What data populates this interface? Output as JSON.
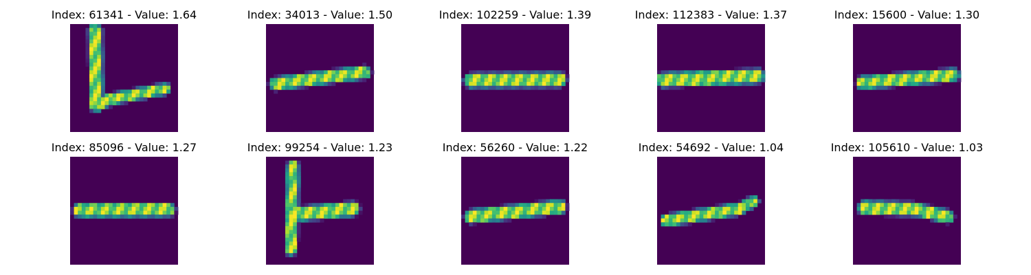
{
  "chart_data": {
    "type": "heatmap",
    "colormap": "viridis",
    "image_size": [
      28,
      28
    ],
    "grid": false,
    "rows": 2,
    "cols": 5,
    "panels": [
      {
        "title": "Index: 61341 - Value: 1.64",
        "strokes": [
          {
            "x1": 6.5,
            "y1": 1.8,
            "x2": 6.8,
            "y2": 21.0,
            "w": 1.3
          },
          {
            "x1": 6.8,
            "y1": 21.0,
            "x2": 10.5,
            "y2": 19.5,
            "w": 1.1
          },
          {
            "x1": 10.5,
            "y1": 19.5,
            "x2": 24.5,
            "y2": 16.8,
            "w": 1.0
          }
        ]
      },
      {
        "title": "Index: 34013 - Value: 1.50",
        "strokes": [
          {
            "x1": 2.5,
            "y1": 15.5,
            "x2": 25.5,
            "y2": 12.5,
            "w": 1.2
          }
        ]
      },
      {
        "title": "Index: 102259 - Value: 1.39",
        "strokes": [
          {
            "x1": 2.5,
            "y1": 14.6,
            "x2": 25.5,
            "y2": 14.4,
            "w": 1.4
          }
        ]
      },
      {
        "title": "Index: 112383 - Value: 1.37",
        "strokes": [
          {
            "x1": 1.5,
            "y1": 14.5,
            "x2": 26.0,
            "y2": 13.5,
            "w": 1.4
          }
        ]
      },
      {
        "title": "Index: 15600 - Value: 1.30",
        "strokes": [
          {
            "x1": 2.5,
            "y1": 15.2,
            "x2": 26.0,
            "y2": 13.2,
            "w": 1.2
          }
        ]
      },
      {
        "title": "Index: 85096 - Value: 1.27",
        "strokes": [
          {
            "x1": 2.5,
            "y1": 13.9,
            "x2": 25.5,
            "y2": 13.7,
            "w": 1.3
          }
        ]
      },
      {
        "title": "Index: 99254 - Value: 1.23",
        "strokes": [
          {
            "x1": 7.0,
            "y1": 2.5,
            "x2": 6.5,
            "y2": 24.0,
            "w": 1.1
          },
          {
            "x1": 6.8,
            "y1": 15.0,
            "x2": 22.5,
            "y2": 13.5,
            "w": 1.4
          }
        ]
      },
      {
        "title": "Index: 56260 - Value: 1.22",
        "strokes": [
          {
            "x1": 2.5,
            "y1": 15.5,
            "x2": 25.5,
            "y2": 13.0,
            "w": 1.3
          }
        ]
      },
      {
        "title": "Index: 54692 - Value: 1.04",
        "strokes": [
          {
            "x1": 2.5,
            "y1": 16.5,
            "x2": 21.5,
            "y2": 13.5,
            "w": 1.1
          },
          {
            "x1": 21.5,
            "y1": 13.5,
            "x2": 25.0,
            "y2": 11.5,
            "w": 0.9
          }
        ]
      },
      {
        "title": "Index: 105610 - Value: 1.03",
        "strokes": [
          {
            "x1": 3.0,
            "y1": 13.2,
            "x2": 16.0,
            "y2": 13.6,
            "w": 1.3
          },
          {
            "x1": 16.0,
            "y1": 13.6,
            "x2": 24.5,
            "y2": 15.5,
            "w": 1.2
          }
        ]
      }
    ]
  }
}
